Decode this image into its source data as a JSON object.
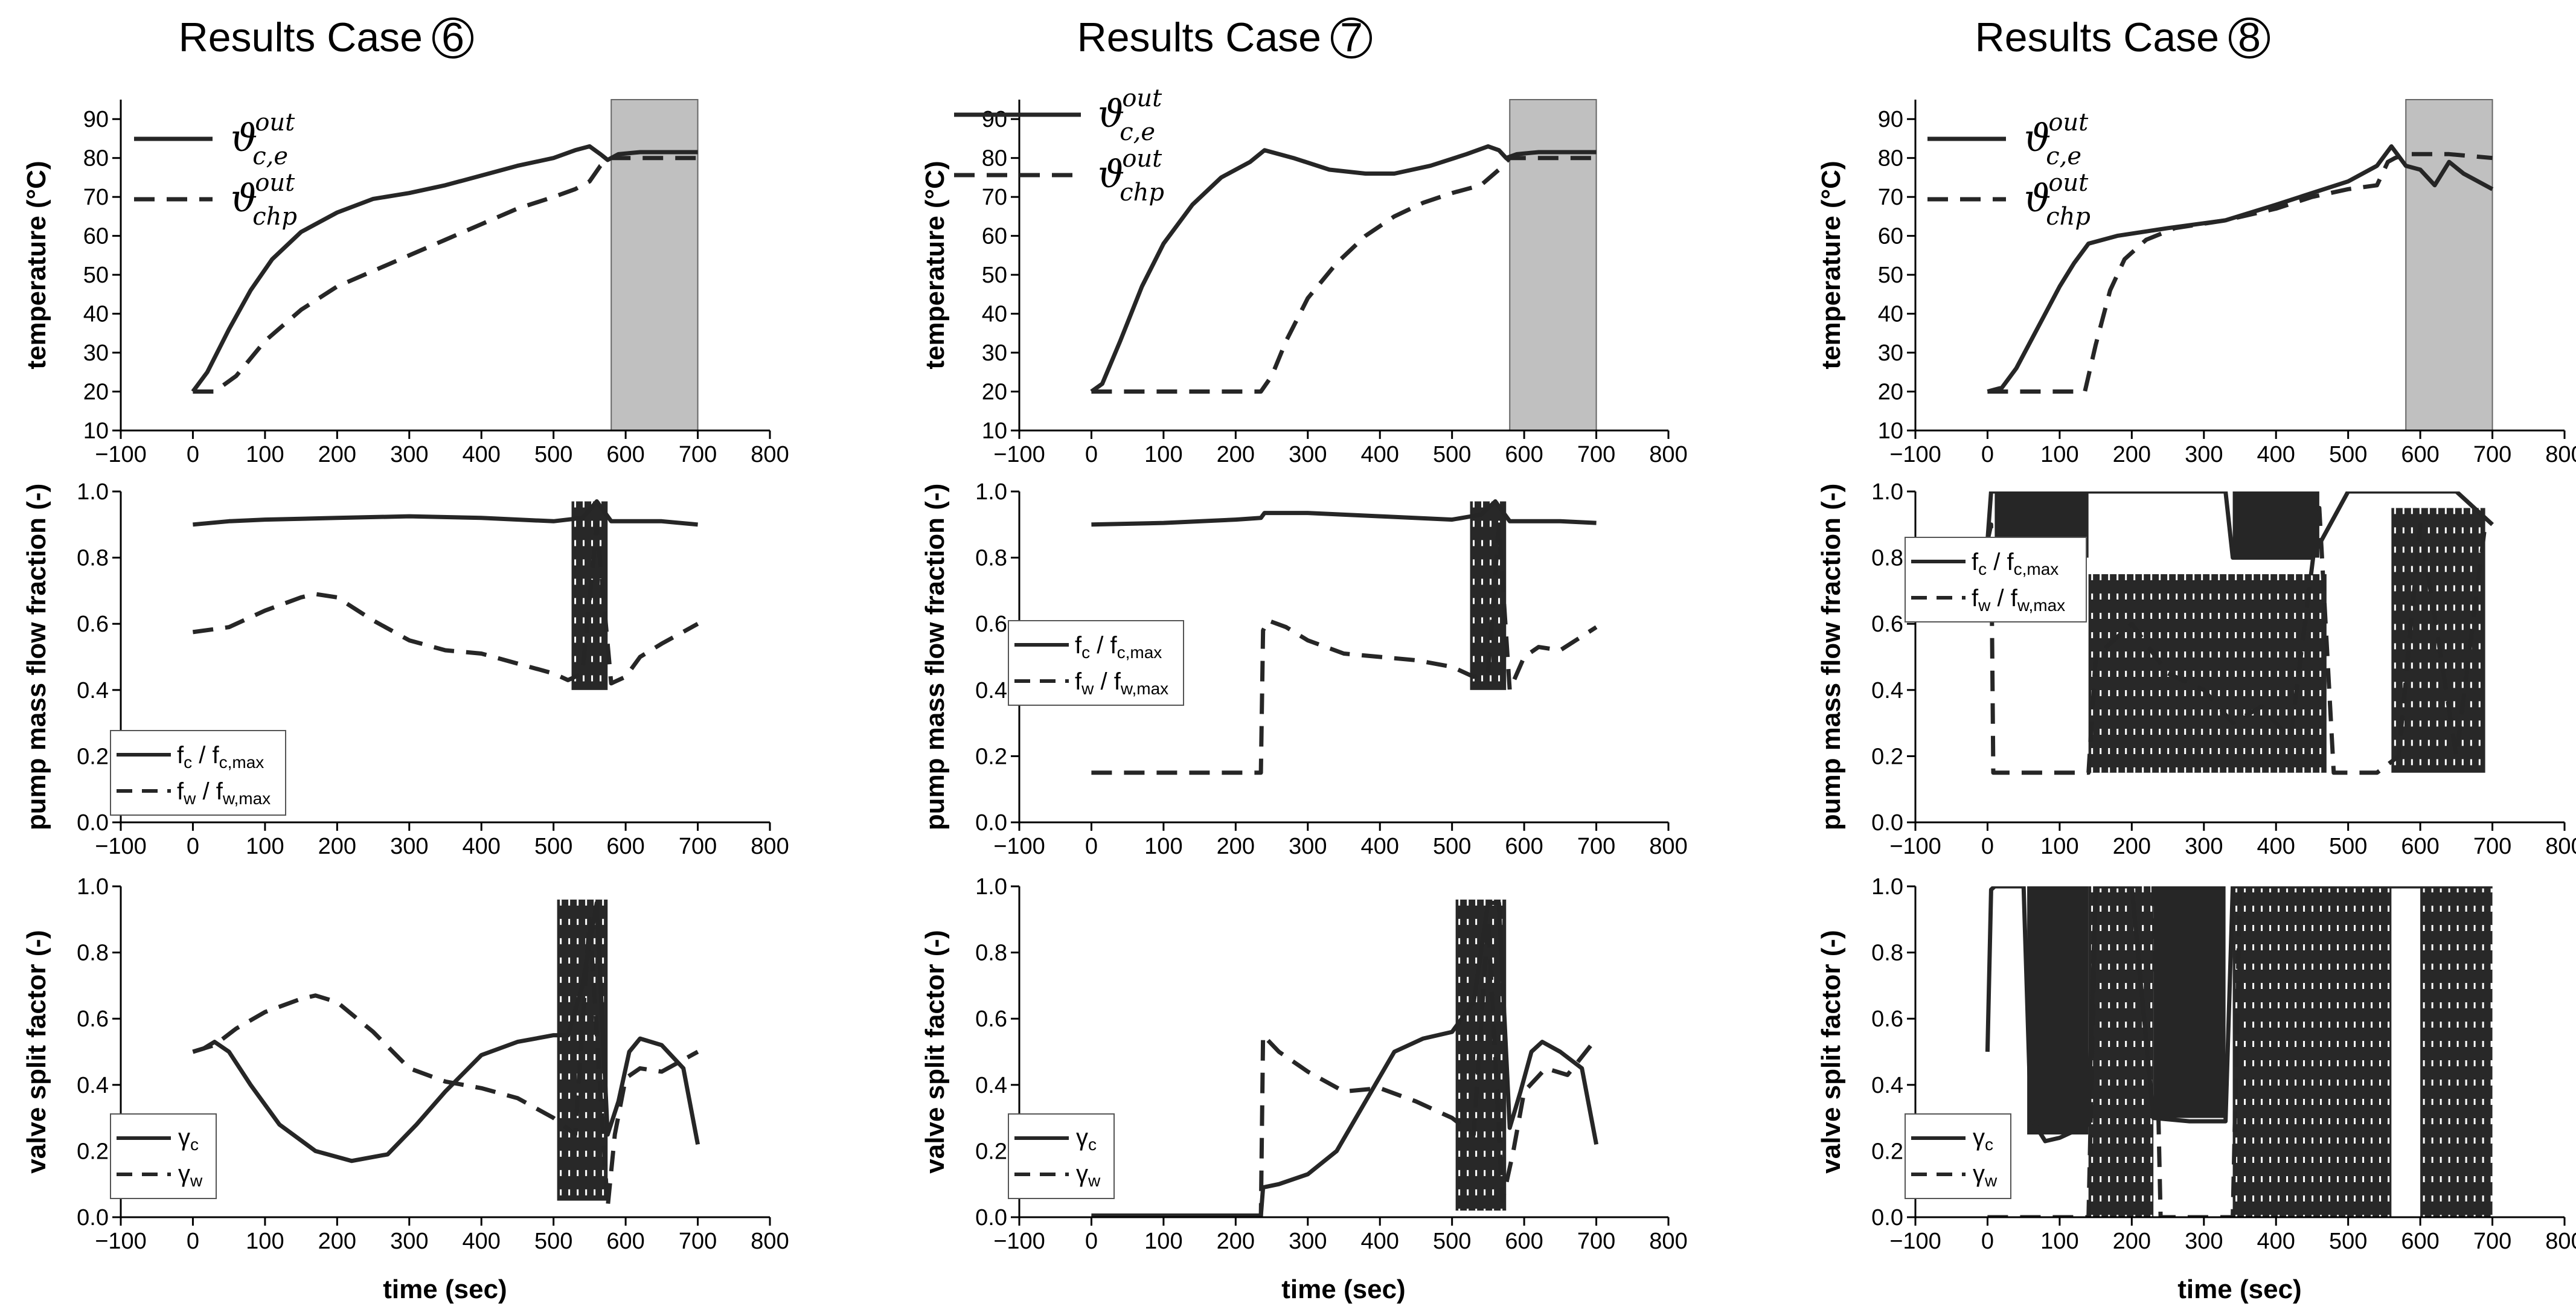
{
  "titles": {
    "prefix": "Results Case",
    "case_numbers": [
      "6",
      "7",
      "8"
    ]
  },
  "axis_labels": {
    "temperature": "temperature (°C)",
    "pump": "pump mass flow fraction (-)",
    "valve": "valve split factor (-)",
    "time": "time (sec)"
  },
  "legend_text": {
    "theta_sym": "ϑ",
    "theta_sup": "out",
    "theta_ce_sub": "c,e",
    "theta_chp_sub": "chp",
    "f_c": "f",
    "f_c_sub": "c",
    "f_c_den": "f",
    "f_c_den_sub": "c,max",
    "f_w": "f",
    "f_w_sub": "w",
    "f_w_den": "f",
    "f_w_den_sub": "w,max",
    "slash": " / ",
    "gamma": "γ",
    "gamma_c_sub": "c",
    "gamma_w_sub": "w"
  },
  "colors": {
    "line": "#262626",
    "shade": "#c0c0c0",
    "band": "#1a1a1a"
  },
  "chart_data": [
    {
      "type": "line",
      "case": "6",
      "row": "temperature",
      "xlim": [
        -100,
        800
      ],
      "ylim": [
        10,
        95
      ],
      "xticks": [
        -100,
        0,
        100,
        200,
        300,
        400,
        500,
        600,
        700,
        800
      ],
      "yticks": [
        10,
        20,
        30,
        40,
        50,
        60,
        70,
        80,
        90
      ],
      "legend": "top-left",
      "shaded_region": [
        580,
        700
      ],
      "series": [
        {
          "name": "ϑ_c,e^out",
          "style": "solid",
          "x": [
            0,
            20,
            50,
            80,
            110,
            150,
            200,
            250,
            300,
            350,
            400,
            450,
            500,
            530,
            550,
            565,
            575,
            590,
            620,
            660,
            700
          ],
          "y": [
            20,
            25,
            36,
            46,
            54,
            61,
            66,
            69.5,
            71,
            73,
            75.5,
            78,
            80,
            82,
            83,
            81,
            79.5,
            81,
            81.5,
            81.5,
            81.5
          ]
        },
        {
          "name": "ϑ_chp^out",
          "style": "dashed",
          "x": [
            0,
            30,
            60,
            100,
            150,
            200,
            250,
            300,
            350,
            400,
            450,
            500,
            530,
            550,
            565,
            580,
            620,
            660,
            700
          ],
          "y": [
            20,
            20,
            24,
            33,
            41,
            47,
            51,
            55,
            59,
            63,
            67,
            70,
            72,
            74,
            78,
            80,
            80,
            80,
            80
          ]
        }
      ]
    },
    {
      "type": "line",
      "case": "6",
      "row": "pump",
      "xlim": [
        -100,
        800
      ],
      "ylim": [
        0,
        1
      ],
      "xticks": [
        -100,
        0,
        100,
        200,
        300,
        400,
        500,
        600,
        700,
        800
      ],
      "yticks": [
        0,
        0.2,
        0.4,
        0.6,
        0.8,
        1
      ],
      "legend": "bottom-left",
      "series": [
        {
          "name": "f_c / f_c,max",
          "style": "solid",
          "x": [
            0,
            50,
            100,
            200,
            300,
            400,
            500,
            540,
            560,
            580,
            600,
            650,
            700
          ],
          "y": [
            0.9,
            0.91,
            0.915,
            0.92,
            0.925,
            0.92,
            0.91,
            0.92,
            0.97,
            0.91,
            0.91,
            0.91,
            0.9
          ]
        },
        {
          "name": "f_w / f_w,max",
          "style": "dashed",
          "x": [
            0,
            50,
            100,
            150,
            170,
            200,
            250,
            300,
            350,
            400,
            450,
            500,
            520,
            540,
            560,
            580,
            600,
            620,
            650,
            700
          ],
          "y": [
            0.575,
            0.59,
            0.64,
            0.68,
            0.69,
            0.68,
            0.61,
            0.55,
            0.52,
            0.51,
            0.48,
            0.45,
            0.43,
            0.45,
            0.9,
            0.42,
            0.44,
            0.5,
            0.54,
            0.6
          ]
        }
      ]
    },
    {
      "type": "line",
      "case": "6",
      "row": "valve",
      "xlim": [
        -100,
        800
      ],
      "ylim": [
        0,
        1
      ],
      "xticks": [
        -100,
        0,
        100,
        200,
        300,
        400,
        500,
        600,
        700,
        800
      ],
      "yticks": [
        0,
        0.2,
        0.4,
        0.6,
        0.8,
        1
      ],
      "legend": "bottom-left",
      "series": [
        {
          "name": "γ_c",
          "style": "solid",
          "x": [
            0,
            15,
            30,
            50,
            80,
            120,
            170,
            220,
            270,
            310,
            350,
            400,
            450,
            500,
            520,
            540,
            560,
            575,
            590,
            605,
            620,
            650,
            680,
            700
          ],
          "y": [
            0.5,
            0.51,
            0.53,
            0.5,
            0.4,
            0.28,
            0.2,
            0.17,
            0.19,
            0.28,
            0.38,
            0.49,
            0.53,
            0.55,
            0.55,
            0.7,
            0.95,
            0.25,
            0.35,
            0.5,
            0.54,
            0.52,
            0.45,
            0.22
          ]
        },
        {
          "name": "γ_w",
          "style": "dashed",
          "x": [
            0,
            30,
            60,
            100,
            150,
            170,
            200,
            250,
            300,
            350,
            400,
            450,
            500,
            530,
            550,
            575,
            585,
            600,
            620,
            650,
            700
          ],
          "y": [
            0.5,
            0.52,
            0.57,
            0.62,
            0.66,
            0.67,
            0.65,
            0.56,
            0.45,
            0.41,
            0.39,
            0.36,
            0.3,
            0.25,
            0.9,
            0.03,
            0.25,
            0.42,
            0.45,
            0.44,
            0.5
          ]
        }
      ]
    },
    {
      "type": "line",
      "case": "7",
      "row": "temperature",
      "xlim": [
        -100,
        800
      ],
      "ylim": [
        10,
        95
      ],
      "xticks": [
        -100,
        0,
        100,
        200,
        300,
        400,
        500,
        600,
        700,
        800
      ],
      "yticks": [
        10,
        20,
        30,
        40,
        50,
        60,
        70,
        80,
        90
      ],
      "legend": "top-left",
      "shaded_region": [
        580,
        700
      ],
      "series": [
        {
          "name": "ϑ_c,e^out",
          "style": "solid",
          "x": [
            0,
            15,
            40,
            70,
            100,
            140,
            180,
            220,
            240,
            280,
            330,
            380,
            420,
            470,
            520,
            550,
            565,
            575,
            590,
            620,
            700
          ],
          "y": [
            20,
            22,
            33,
            47,
            58,
            68,
            75,
            79,
            82,
            80,
            77,
            76,
            76,
            78,
            81,
            83,
            82,
            80,
            81,
            81.5,
            81.5
          ]
        },
        {
          "name": "ϑ_chp^out",
          "style": "dashed",
          "x": [
            0,
            100,
            200,
            235,
            250,
            270,
            300,
            340,
            380,
            420,
            460,
            500,
            540,
            565,
            580,
            620,
            700
          ],
          "y": [
            20,
            20,
            20,
            20,
            24,
            33,
            44,
            53,
            60,
            65,
            68.5,
            71,
            73,
            77,
            80,
            80,
            80
          ]
        }
      ]
    },
    {
      "type": "line",
      "case": "7",
      "row": "pump",
      "xlim": [
        -100,
        800
      ],
      "ylim": [
        0,
        1
      ],
      "xticks": [
        -100,
        0,
        100,
        200,
        300,
        400,
        500,
        600,
        700,
        800
      ],
      "yticks": [
        0,
        0.2,
        0.4,
        0.6,
        0.8,
        1
      ],
      "legend": "center-left",
      "series": [
        {
          "name": "f_c / f_c,max",
          "style": "solid",
          "x": [
            0,
            100,
            200,
            235,
            240,
            300,
            400,
            500,
            540,
            560,
            580,
            600,
            650,
            700
          ],
          "y": [
            0.9,
            0.905,
            0.915,
            0.92,
            0.935,
            0.935,
            0.925,
            0.915,
            0.93,
            0.97,
            0.91,
            0.91,
            0.91,
            0.905
          ]
        },
        {
          "name": "f_w / f_w,max",
          "style": "dashed",
          "x": [
            0,
            100,
            200,
            235,
            238,
            245,
            270,
            300,
            350,
            400,
            450,
            500,
            530,
            550,
            565,
            580,
            600,
            620,
            650,
            700
          ],
          "y": [
            0.15,
            0.15,
            0.15,
            0.15,
            0.58,
            0.61,
            0.59,
            0.55,
            0.51,
            0.5,
            0.49,
            0.47,
            0.44,
            0.45,
            0.9,
            0.4,
            0.5,
            0.53,
            0.52,
            0.59
          ]
        }
      ]
    },
    {
      "type": "line",
      "case": "7",
      "row": "valve",
      "xlim": [
        -100,
        800
      ],
      "ylim": [
        0,
        1
      ],
      "xticks": [
        -100,
        0,
        100,
        200,
        300,
        400,
        500,
        600,
        700,
        800
      ],
      "yticks": [
        0,
        0.2,
        0.4,
        0.6,
        0.8,
        1
      ],
      "legend": "bottom-left",
      "series": [
        {
          "name": "γ_c",
          "style": "solid",
          "x": [
            0,
            100,
            200,
            235,
            238,
            260,
            300,
            340,
            380,
            420,
            460,
            500,
            530,
            550,
            565,
            580,
            595,
            610,
            625,
            650,
            680,
            700
          ],
          "y": [
            0.005,
            0.005,
            0.005,
            0.005,
            0.09,
            0.1,
            0.13,
            0.2,
            0.35,
            0.5,
            0.54,
            0.56,
            0.65,
            0.95,
            0.95,
            0.27,
            0.38,
            0.5,
            0.53,
            0.5,
            0.45,
            0.22
          ]
        },
        {
          "name": "γ_w",
          "style": "dashed",
          "x": [
            0,
            100,
            200,
            235,
            238,
            260,
            300,
            350,
            400,
            450,
            500,
            530,
            550,
            570,
            585,
            600,
            630,
            660,
            700
          ],
          "y": [
            0,
            0,
            0,
            0,
            0.55,
            0.5,
            0.44,
            0.38,
            0.39,
            0.35,
            0.3,
            0.25,
            0.9,
            0.05,
            0.2,
            0.38,
            0.45,
            0.43,
            0.54
          ]
        }
      ]
    },
    {
      "type": "line",
      "case": "8",
      "row": "temperature",
      "xlim": [
        -100,
        800
      ],
      "ylim": [
        10,
        95
      ],
      "xticks": [
        -100,
        0,
        100,
        200,
        300,
        400,
        500,
        600,
        700,
        800
      ],
      "yticks": [
        10,
        20,
        30,
        40,
        50,
        60,
        70,
        80,
        90
      ],
      "legend": "top-left",
      "shaded_region": [
        580,
        700
      ],
      "series": [
        {
          "name": "ϑ_c,e^out",
          "style": "solid",
          "x": [
            0,
            20,
            40,
            60,
            80,
            100,
            120,
            140,
            180,
            250,
            330,
            400,
            450,
            500,
            520,
            540,
            560,
            580,
            600,
            620,
            640,
            660,
            700
          ],
          "y": [
            20,
            21,
            26,
            33,
            40,
            47,
            53,
            58,
            60,
            62,
            64,
            68,
            71,
            74,
            76,
            78,
            83,
            78,
            77,
            73,
            79,
            76,
            72
          ]
        },
        {
          "name": "ϑ_chp^out",
          "style": "dashed",
          "x": [
            0,
            60,
            100,
            135,
            150,
            170,
            190,
            220,
            260,
            330,
            400,
            450,
            500,
            540,
            555,
            565,
            580,
            640,
            700
          ],
          "y": [
            20,
            20,
            20,
            20,
            32,
            46,
            54,
            59,
            62,
            64,
            67,
            70,
            72,
            73,
            79,
            80,
            81,
            81,
            80
          ]
        }
      ]
    },
    {
      "type": "line",
      "case": "8",
      "row": "pump",
      "xlim": [
        -100,
        800
      ],
      "ylim": [
        0,
        1
      ],
      "xticks": [
        -100,
        0,
        100,
        200,
        300,
        400,
        500,
        600,
        700,
        800
      ],
      "yticks": [
        0,
        0.2,
        0.4,
        0.6,
        0.8,
        1
      ],
      "legend": "top-left",
      "series": [
        {
          "name": "f_c / f_c,max",
          "style": "solid",
          "x": [
            0,
            5,
            10,
            100,
            200,
            330,
            340,
            400,
            450,
            500,
            560,
            600,
            650,
            700
          ],
          "y": [
            0.85,
            1,
            1,
            1,
            1,
            1,
            0.8,
            0.8,
            0.8,
            1,
            1,
            1,
            1,
            0.9
          ]
        },
        {
          "name": "f_w / f_w,max",
          "style": "dashed",
          "x": [
            0,
            5,
            8,
            20,
            50,
            100,
            140,
            150,
            200,
            250,
            300,
            340,
            380,
            420,
            460,
            480,
            500,
            540,
            570,
            600,
            650,
            690
          ],
          "y": [
            0.85,
            0.9,
            0.15,
            0.15,
            0.15,
            0.15,
            0.15,
            0.5,
            0.6,
            0.45,
            0.4,
            0.3,
            0.35,
            0.25,
            0.95,
            0.15,
            0.15,
            0.15,
            0.2,
            0.9,
            0.2,
            0.9
          ]
        }
      ]
    },
    {
      "type": "line",
      "case": "8",
      "row": "valve",
      "xlim": [
        -100,
        800
      ],
      "ylim": [
        0,
        1
      ],
      "xticks": [
        -100,
        0,
        100,
        200,
        300,
        400,
        500,
        600,
        700,
        800
      ],
      "yticks": [
        0,
        0.2,
        0.4,
        0.6,
        0.8,
        1
      ],
      "legend": "bottom-left",
      "series": [
        {
          "name": "γ_c",
          "style": "solid",
          "x": [
            0,
            5,
            10,
            50,
            60,
            80,
            100,
            120,
            140,
            150,
            200,
            230,
            280,
            330,
            340,
            400,
            450,
            500,
            550,
            600,
            650,
            700
          ],
          "y": [
            0.5,
            0.99,
            1,
            1,
            0.3,
            0.23,
            0.24,
            0.26,
            0.28,
            1,
            1,
            0.3,
            0.29,
            0.29,
            1,
            1,
            1,
            1,
            1,
            1,
            1,
            1
          ]
        },
        {
          "name": "γ_w",
          "style": "dashed",
          "x": [
            0,
            50,
            100,
            140,
            150,
            230,
            240,
            340,
            350,
            420,
            500,
            560,
            600,
            650,
            700
          ],
          "y": [
            0,
            0,
            0,
            0,
            1,
            1,
            0,
            0,
            1,
            1,
            1,
            1,
            1,
            1,
            1
          ]
        }
      ]
    }
  ]
}
